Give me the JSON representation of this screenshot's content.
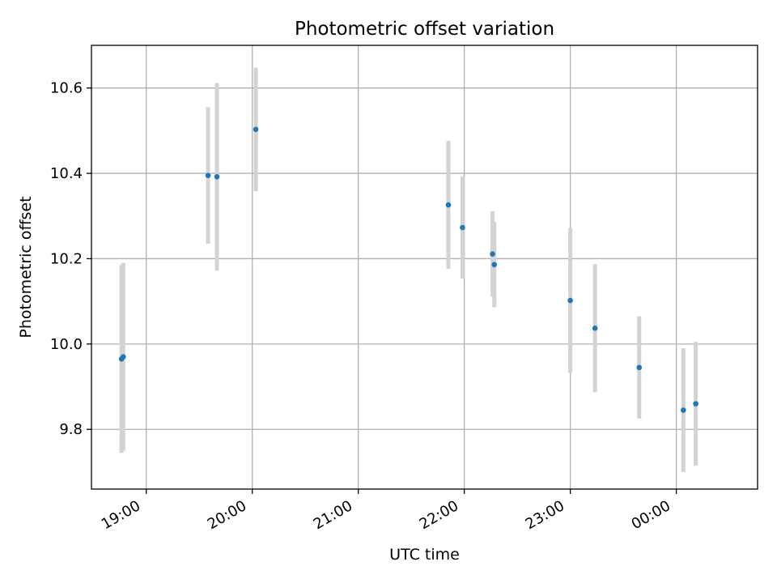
{
  "chart_data": {
    "type": "scatter",
    "title": "Photometric offset variation",
    "xlabel": "UTC time",
    "ylabel": "Photometric offset",
    "x_axis_type": "time",
    "xlim": [
      "18:29",
      "00:46"
    ],
    "ylim": [
      9.66,
      10.7
    ],
    "x_ticks": [
      "19:00",
      "20:00",
      "21:00",
      "22:00",
      "23:00",
      "00:00"
    ],
    "y_ticks": [
      "9.8",
      "10.0",
      "10.2",
      "10.4",
      "10.6"
    ],
    "grid": true,
    "legend": "none",
    "point_color": "#1f77b4",
    "errorbar_color": "#d3d3d3",
    "points": [
      {
        "x": "18:46",
        "y": 9.965,
        "err": 0.22
      },
      {
        "x": "18:47",
        "y": 9.97,
        "err": 0.22
      },
      {
        "x": "19:35",
        "y": 10.395,
        "err": 0.16
      },
      {
        "x": "19:40",
        "y": 10.392,
        "err": 0.22
      },
      {
        "x": "20:02",
        "y": 10.503,
        "err": 0.145
      },
      {
        "x": "21:51",
        "y": 10.326,
        "err": 0.15
      },
      {
        "x": "21:59",
        "y": 10.273,
        "err": 0.12
      },
      {
        "x": "22:16",
        "y": 10.211,
        "err": 0.1
      },
      {
        "x": "22:17",
        "y": 10.186,
        "err": 0.1
      },
      {
        "x": "23:00",
        "y": 10.102,
        "err": 0.17
      },
      {
        "x": "23:14",
        "y": 10.037,
        "err": 0.15
      },
      {
        "x": "23:39",
        "y": 9.945,
        "err": 0.12
      },
      {
        "x": "00:04",
        "y": 9.845,
        "err": 0.145
      },
      {
        "x": "00:11",
        "y": 9.86,
        "err": 0.145
      }
    ]
  }
}
